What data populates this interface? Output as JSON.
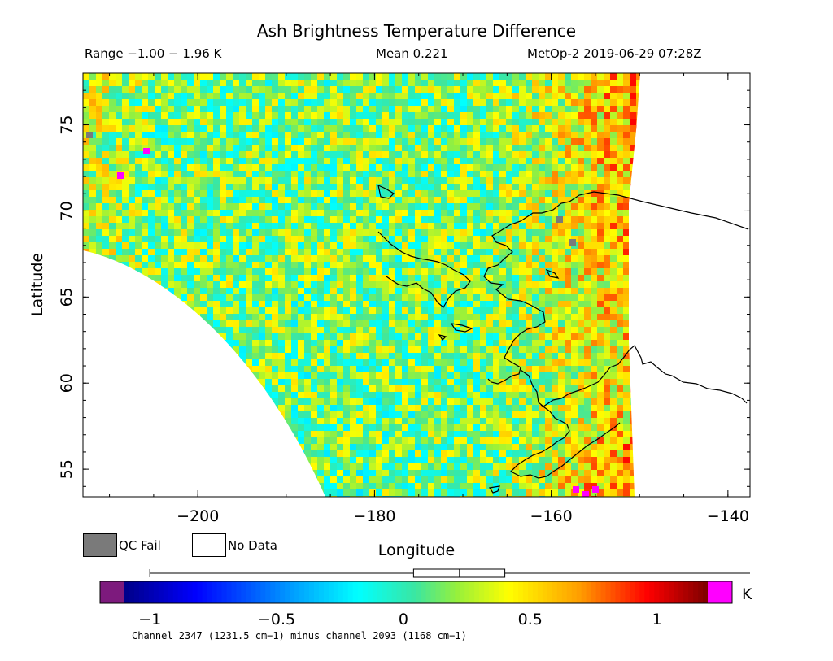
{
  "title": "Ash Brightness Temperature Difference",
  "info": {
    "range": "Range −1.00 − 1.96 K",
    "mean": "Mean 0.221",
    "satellite_time": "MetOp-2 2019-06-29 07:28Z"
  },
  "axes": {
    "xlabel": "Longitude",
    "ylabel": "Latitude",
    "xlim": [
      -213,
      -137.5
    ],
    "ylim": [
      53.4,
      78
    ],
    "xticks": [
      "−200",
      "−180",
      "−160",
      "−140"
    ],
    "xtick_values": [
      -200,
      -180,
      -160,
      -140
    ],
    "yticks": [
      "55",
      "60",
      "65",
      "70",
      "75"
    ],
    "ytick_values": [
      55,
      60,
      65,
      70,
      75
    ]
  },
  "legend": {
    "qc_fail": "QC Fail",
    "no_data": "No Data",
    "qc_fail_color": "#7a7a7a",
    "no_data_color": "#ffffff"
  },
  "colorbar": {
    "unit": "K",
    "ticks": [
      "−1",
      "−0.5",
      "0",
      "0.5",
      "1"
    ],
    "tick_values": [
      -1,
      -0.5,
      0,
      0.5,
      1
    ],
    "vmin": -1.1,
    "vmax": 1.2,
    "under_color": "#7d1a7d",
    "over_color": "#ff00ff",
    "boxplot": {
      "whisker_low": -1.0,
      "q1": 0.04,
      "median": 0.221,
      "q3": 0.4,
      "whisker_high": 1.96
    }
  },
  "caption": "Channel 2347 (1231.5 cm−1) minus channel 2093 (1168 cm−1)",
  "chart_data": {
    "type": "heatmap",
    "title": "Ash Brightness Temperature Difference",
    "xlabel": "Longitude",
    "ylabel": "Latitude",
    "value_range": [
      -1.0,
      1.96
    ],
    "mean": 0.221,
    "units": "K",
    "satellite": "MetOp-2",
    "datetime": "2019-06-29 07:28Z"
  }
}
